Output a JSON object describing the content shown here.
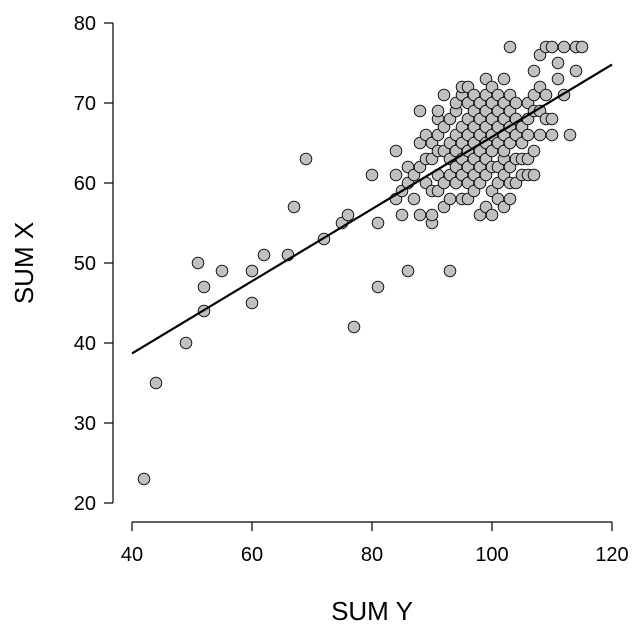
{
  "chart_data": {
    "type": "scatter",
    "title": "",
    "xlabel": "SUM Y",
    "ylabel": "SUM X",
    "xlim": [
      40,
      120
    ],
    "ylim": [
      20,
      80
    ],
    "xticks": [
      40,
      60,
      80,
      100,
      120
    ],
    "yticks": [
      20,
      30,
      40,
      50,
      60,
      70,
      80
    ],
    "xtick_labels": [
      "40",
      "60",
      "80",
      "100",
      "120"
    ],
    "ytick_labels": [
      "20",
      "30",
      "40",
      "50",
      "60",
      "70",
      "80"
    ],
    "grid": false,
    "legend": "none",
    "colors": {
      "point_fill": "#c0c0c0",
      "point_stroke": "#000000",
      "line": "#000000"
    },
    "fit_line": {
      "x": [
        40,
        120
      ],
      "y": [
        38.7,
        74.8
      ]
    },
    "points": [
      [
        42,
        23
      ],
      [
        44,
        35
      ],
      [
        49,
        40
      ],
      [
        51,
        50
      ],
      [
        52,
        47
      ],
      [
        52,
        44
      ],
      [
        55,
        49
      ],
      [
        60,
        49
      ],
      [
        60,
        45
      ],
      [
        62,
        51
      ],
      [
        66,
        51
      ],
      [
        67,
        57
      ],
      [
        69,
        63
      ],
      [
        72,
        53
      ],
      [
        75,
        55
      ],
      [
        76,
        56
      ],
      [
        77,
        42
      ],
      [
        80,
        61
      ],
      [
        81,
        55
      ],
      [
        81,
        47
      ],
      [
        84,
        64
      ],
      [
        84,
        61
      ],
      [
        84,
        58
      ],
      [
        85,
        59
      ],
      [
        85,
        56
      ],
      [
        86,
        60
      ],
      [
        86,
        49
      ],
      [
        86,
        62
      ],
      [
        87,
        58
      ],
      [
        87,
        61
      ],
      [
        88,
        56
      ],
      [
        88,
        62
      ],
      [
        88,
        65
      ],
      [
        88,
        69
      ],
      [
        89,
        60
      ],
      [
        89,
        63
      ],
      [
        89,
        66
      ],
      [
        90,
        55
      ],
      [
        90,
        56
      ],
      [
        90,
        59
      ],
      [
        90,
        63
      ],
      [
        90,
        65
      ],
      [
        91,
        59
      ],
      [
        91,
        61
      ],
      [
        91,
        64
      ],
      [
        91,
        66
      ],
      [
        91,
        68
      ],
      [
        91,
        69
      ],
      [
        92,
        57
      ],
      [
        92,
        60
      ],
      [
        92,
        64
      ],
      [
        92,
        67
      ],
      [
        92,
        71
      ],
      [
        93,
        49
      ],
      [
        93,
        58
      ],
      [
        93,
        61
      ],
      [
        93,
        63
      ],
      [
        93,
        65
      ],
      [
        93,
        68
      ],
      [
        94,
        60
      ],
      [
        94,
        62
      ],
      [
        94,
        64
      ],
      [
        94,
        66
      ],
      [
        94,
        69
      ],
      [
        94,
        70
      ],
      [
        95,
        58
      ],
      [
        95,
        61
      ],
      [
        95,
        63
      ],
      [
        95,
        65
      ],
      [
        95,
        67
      ],
      [
        95,
        71
      ],
      [
        95,
        72
      ],
      [
        96,
        58
      ],
      [
        96,
        60
      ],
      [
        96,
        62
      ],
      [
        96,
        64
      ],
      [
        96,
        66
      ],
      [
        96,
        68
      ],
      [
        96,
        70
      ],
      [
        96,
        72
      ],
      [
        97,
        59
      ],
      [
        97,
        61
      ],
      [
        97,
        63
      ],
      [
        97,
        65
      ],
      [
        97,
        67
      ],
      [
        97,
        69
      ],
      [
        97,
        71
      ],
      [
        98,
        56
      ],
      [
        98,
        60
      ],
      [
        98,
        62
      ],
      [
        98,
        64
      ],
      [
        98,
        66
      ],
      [
        98,
        68
      ],
      [
        98,
        70
      ],
      [
        99,
        57
      ],
      [
        99,
        61
      ],
      [
        99,
        63
      ],
      [
        99,
        65
      ],
      [
        99,
        67
      ],
      [
        99,
        69
      ],
      [
        99,
        71
      ],
      [
        99,
        73
      ],
      [
        100,
        56
      ],
      [
        100,
        59
      ],
      [
        100,
        62
      ],
      [
        100,
        64
      ],
      [
        100,
        66
      ],
      [
        100,
        68
      ],
      [
        100,
        70
      ],
      [
        100,
        72
      ],
      [
        101,
        58
      ],
      [
        101,
        60
      ],
      [
        101,
        62
      ],
      [
        101,
        65
      ],
      [
        101,
        67
      ],
      [
        101,
        69
      ],
      [
        101,
        71
      ],
      [
        102,
        57
      ],
      [
        102,
        61
      ],
      [
        102,
        63
      ],
      [
        102,
        64
      ],
      [
        102,
        66
      ],
      [
        102,
        68
      ],
      [
        102,
        70
      ],
      [
        102,
        73
      ],
      [
        103,
        58
      ],
      [
        103,
        60
      ],
      [
        103,
        62
      ],
      [
        103,
        65
      ],
      [
        103,
        67
      ],
      [
        103,
        69
      ],
      [
        103,
        71
      ],
      [
        103,
        77
      ],
      [
        104,
        60
      ],
      [
        104,
        63
      ],
      [
        104,
        66
      ],
      [
        104,
        68
      ],
      [
        104,
        70
      ],
      [
        105,
        61
      ],
      [
        105,
        63
      ],
      [
        105,
        65
      ],
      [
        105,
        67
      ],
      [
        106,
        61
      ],
      [
        106,
        63
      ],
      [
        106,
        66
      ],
      [
        106,
        68
      ],
      [
        106,
        70
      ],
      [
        107,
        61
      ],
      [
        107,
        64
      ],
      [
        107,
        69
      ],
      [
        107,
        71
      ],
      [
        107,
        74
      ],
      [
        108,
        66
      ],
      [
        108,
        69
      ],
      [
        108,
        72
      ],
      [
        108,
        76
      ],
      [
        109,
        68
      ],
      [
        109,
        71
      ],
      [
        109,
        77
      ],
      [
        110,
        66
      ],
      [
        110,
        68
      ],
      [
        110,
        77
      ],
      [
        111,
        73
      ],
      [
        111,
        75
      ],
      [
        112,
        71
      ],
      [
        112,
        77
      ],
      [
        113,
        66
      ],
      [
        114,
        74
      ],
      [
        114,
        77
      ],
      [
        115,
        77
      ]
    ]
  }
}
